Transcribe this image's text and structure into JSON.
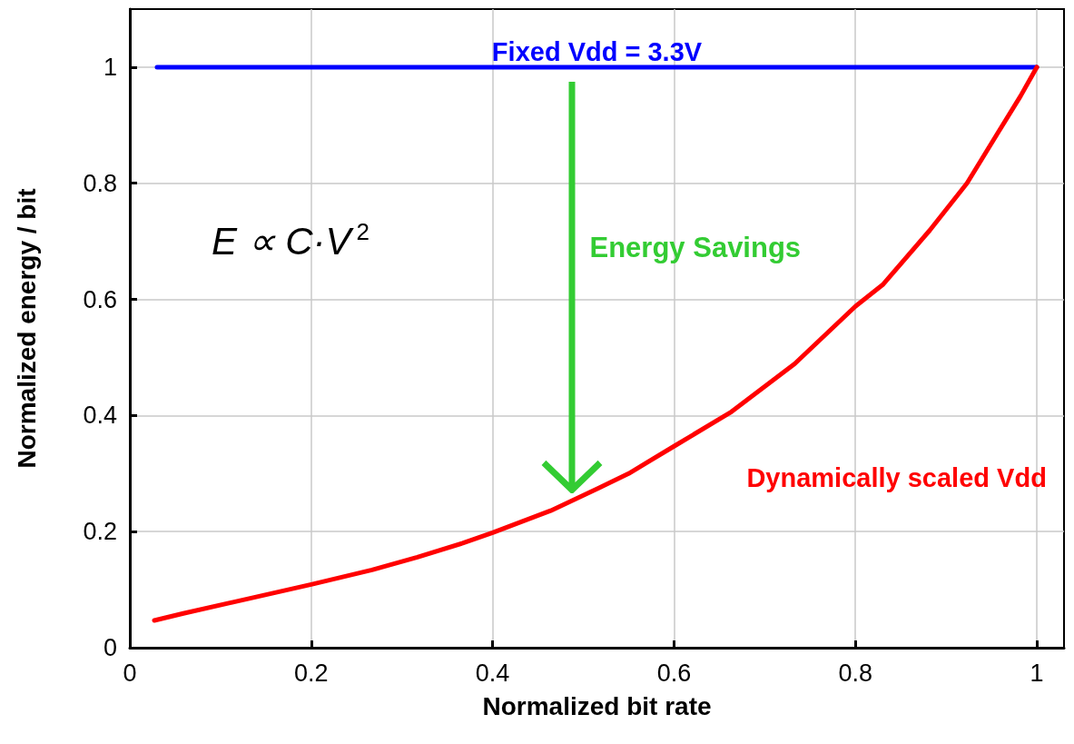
{
  "chart_data": {
    "type": "line",
    "xlabel": "Normalized bit rate",
    "ylabel": "Normalized energy / bit",
    "xlim": [
      0,
      1.03
    ],
    "xticks": [
      0,
      0.2,
      0.4,
      0.6,
      0.8,
      1
    ],
    "ylim": [
      0,
      1.1
    ],
    "yticks": [
      0,
      0.2,
      0.4,
      0.6,
      0.8,
      1
    ],
    "grid": true,
    "legend": false,
    "marker": "none",
    "line_style": "solid",
    "annotations": [
      "E ∝ C·V$^{2}$",
      "Energy Savings"
    ],
    "series": [
      {
        "name": "Fixed Vdd = 3.3V",
        "color": "#0000ff",
        "x": [
          0.03,
          1.0
        ],
        "values": [
          1,
          1
        ]
      },
      {
        "name": "Dynamically scaled Vdd",
        "color": "#ff0000",
        "x": [
          0.027,
          0.059,
          0.2,
          0.267,
          0.317,
          0.367,
          0.4,
          0.464,
          0.517,
          0.55,
          0.6,
          0.662,
          0.733,
          0.8,
          0.83,
          0.882,
          0.923,
          0.956,
          0.982,
          1.0
        ],
        "values": [
          0.047,
          0.059,
          0.109,
          0.134,
          0.156,
          0.18,
          0.198,
          0.236,
          0.275,
          0.3,
          0.347,
          0.405,
          0.489,
          0.588,
          0.625,
          0.719,
          0.8,
          0.884,
          0.95,
          1.0
        ]
      }
    ]
  }
}
